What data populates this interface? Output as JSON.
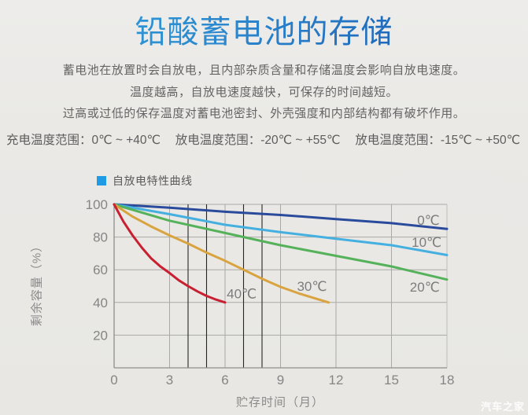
{
  "page": {
    "title": "铅酸蓄电池的存储",
    "paragraph_lines": [
      "蓄电池在放置时会自放电，且内部杂质含量和存储温度会影响自放电速度。",
      "温度越高，自放电速度越快，可保存的时间越短。",
      "过高或过低的保存温度对蓄电池密封、外壳强度和内部结构都有破坏作用。"
    ],
    "temp_ranges": [
      "充电温度范围：0℃ ~ +40℃",
      "放电温度范围：-20℃ ~ +55℃",
      "放电温度范围：-15℃ ~ +50℃"
    ],
    "watermark": "汽车之家"
  },
  "chart_data": {
    "type": "line",
    "title": "",
    "legend": {
      "label": "自放电特性曲线",
      "swatch_color": "#1f9be6",
      "position": "top-left"
    },
    "xlabel": "贮存时间（月）",
    "ylabel": "剩余容量（%）",
    "xlim": [
      0,
      18
    ],
    "ylim": [
      0,
      100
    ],
    "x_ticks": [
      0,
      3,
      6,
      9,
      12,
      15,
      18
    ],
    "y_ticks": [
      20,
      40,
      60,
      80,
      100
    ],
    "minor_black_vlines": [
      4,
      5,
      7,
      8
    ],
    "grid": true,
    "colors": {
      "grid": "#a9a9a7",
      "axis": "#8e8e8c",
      "minor_line": "#262626",
      "right_border": "#bdbdbb"
    },
    "series": [
      {
        "name": "0℃",
        "color": "#2a4b9c",
        "points": [
          [
            0,
            100
          ],
          [
            3,
            98
          ],
          [
            6,
            95.5
          ],
          [
            9,
            93.5
          ],
          [
            12,
            91
          ],
          [
            15,
            88.5
          ],
          [
            18,
            85
          ]
        ],
        "label_pos": [
          17,
          90.5
        ]
      },
      {
        "name": "10℃",
        "color": "#45b0e0",
        "points": [
          [
            0,
            100
          ],
          [
            3,
            94
          ],
          [
            6,
            87.5
          ],
          [
            9,
            83
          ],
          [
            12,
            79
          ],
          [
            15,
            75
          ],
          [
            18,
            69
          ]
        ],
        "label_pos": [
          16.9,
          77
        ]
      },
      {
        "name": "20℃",
        "color": "#55b25a",
        "points": [
          [
            0,
            100
          ],
          [
            3,
            90
          ],
          [
            6,
            82.5
          ],
          [
            9,
            75
          ],
          [
            12,
            68.5
          ],
          [
            15,
            62
          ],
          [
            18,
            54
          ]
        ],
        "label_pos": [
          16.8,
          49.5
        ]
      },
      {
        "name": "30℃",
        "color": "#d9a43f",
        "points": [
          [
            0,
            100
          ],
          [
            1,
            92.5
          ],
          [
            2,
            86.5
          ],
          [
            3,
            81
          ],
          [
            4,
            76
          ],
          [
            5,
            70.5
          ],
          [
            6,
            65.5
          ],
          [
            7,
            60
          ],
          [
            8,
            54.5
          ],
          [
            9,
            49.5
          ],
          [
            10,
            45.5
          ],
          [
            11,
            42
          ],
          [
            11.6,
            40
          ]
        ],
        "label_pos": [
          10.7,
          50
        ]
      },
      {
        "name": "40℃",
        "color": "#c92031",
        "points": [
          [
            0,
            100
          ],
          [
            0.5,
            89.5
          ],
          [
            1,
            81
          ],
          [
            1.5,
            73.5
          ],
          [
            2,
            67
          ],
          [
            2.5,
            62
          ],
          [
            3,
            58
          ],
          [
            3.5,
            53.5
          ],
          [
            4,
            50
          ],
          [
            4.5,
            46.8
          ],
          [
            5,
            44
          ],
          [
            5.5,
            41.8
          ],
          [
            6,
            40
          ]
        ],
        "label_pos": [
          6.9,
          45.5
        ]
      }
    ]
  }
}
